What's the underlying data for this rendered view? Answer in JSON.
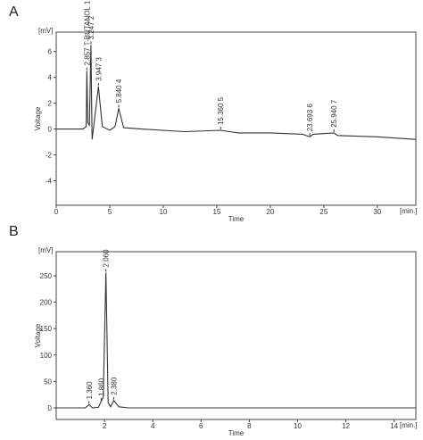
{
  "chart_data": [
    {
      "type": "line",
      "panel": "A",
      "y_label": "Voltage",
      "x_label": "Time",
      "y_unit": "[mV]",
      "x_unit": "[min.]",
      "xlim": [
        0,
        33.6
      ],
      "xticks": [
        0,
        5,
        10,
        15,
        20,
        25,
        30
      ],
      "ylim": [
        -5.9,
        7.5
      ],
      "yticks": [
        -4,
        -2,
        0,
        2,
        4,
        6
      ],
      "x": [
        0,
        2.5,
        2.8,
        2.857,
        2.95,
        3.1,
        3.247,
        3.35,
        3.5,
        3.947,
        4.3,
        5,
        5.5,
        5.84,
        6.3,
        8,
        12,
        15.36,
        17,
        20,
        23,
        23.693,
        24,
        25.94,
        26.3,
        30,
        33.6
      ],
      "series": [
        {
          "color": "#333333",
          "values": [
            0,
            0,
            0.2,
            4.5,
            0.5,
            0.3,
            6.5,
            -0.8,
            0.2,
            3.3,
            0.2,
            -0.1,
            0.2,
            1.6,
            0.1,
            0,
            -0.2,
            -0.1,
            -0.3,
            -0.3,
            -0.4,
            -0.6,
            -0.4,
            -0.3,
            -0.5,
            -0.6,
            -0.8
          ]
        }
      ],
      "annotations": [
        {
          "x": 2.857,
          "label": "2.857 T-BUTANOL 1"
        },
        {
          "x": 3.247,
          "label": "3.247 2"
        },
        {
          "x": 3.947,
          "label": "3.947 3"
        },
        {
          "x": 5.84,
          "label": "5.840 4"
        },
        {
          "x": 15.36,
          "label": "15.360 5"
        },
        {
          "x": 23.693,
          "label": "23.693 6"
        },
        {
          "x": 25.94,
          "label": "25.940 7"
        }
      ]
    },
    {
      "type": "line",
      "panel": "B",
      "y_label": "Voltage",
      "x_label": "Time",
      "y_unit": "[mV]",
      "x_unit": "[min.]",
      "xlim": [
        0,
        14.9
      ],
      "xticks": [
        2,
        4,
        6,
        8,
        10,
        12,
        14
      ],
      "ylim": [
        -22,
        295.6
      ],
      "yticks": [
        0,
        50,
        100,
        150,
        200,
        250
      ],
      "x": [
        0,
        1.2,
        1.36,
        1.5,
        1.75,
        1.86,
        1.95,
        2.06,
        2.15,
        2.25,
        2.38,
        2.6,
        3,
        14.9
      ],
      "series": [
        {
          "color": "#333333",
          "values": [
            0,
            0,
            6,
            0,
            1,
            12,
            20,
            256,
            10,
            2,
            14,
            2,
            0,
            0
          ]
        }
      ],
      "annotations": [
        {
          "x": 1.36,
          "label": "1.360"
        },
        {
          "x": 1.86,
          "label": "1.860"
        },
        {
          "x": 2.06,
          "label": "2.060"
        },
        {
          "x": 2.38,
          "label": "2.380"
        }
      ]
    }
  ]
}
